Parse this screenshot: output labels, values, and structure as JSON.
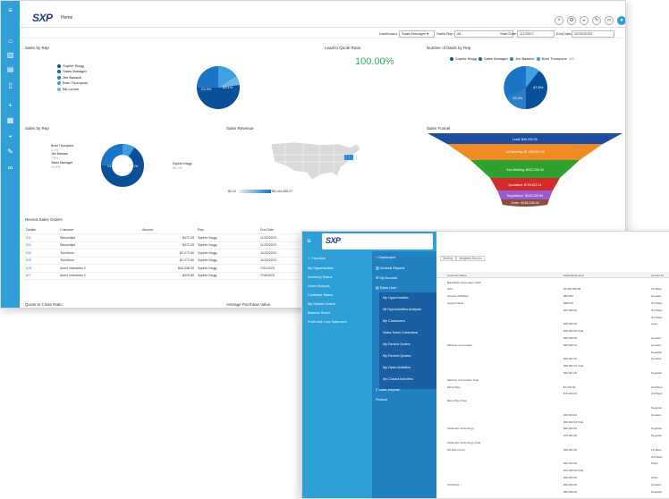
{
  "back_window": {
    "page_title": "Home",
    "logo": "SXP",
    "filters": {
      "dashboard_label": "Dashboard:",
      "dashboard_value": "Sales Manager",
      "sales_rep_label": "Sales Rep:",
      "sales_rep_value": "All",
      "start_date_label": "Start Date:",
      "start_date_value": "1/1/2007",
      "end_date_label": "End Date:",
      "end_date_value": "12/31/2023"
    },
    "sales_by_rep_top": {
      "title": "Sales by Rep",
      "legend": [
        "Sophie Klogg",
        "Sales Manager",
        "Jim Bassick",
        "Brad Thompson",
        "Bill Levine"
      ],
      "slice_labels": [
        "23.9%",
        "65.1%"
      ]
    },
    "lead_to_quote": {
      "title": "Lead to Quote Ratio",
      "value": "100.00%"
    },
    "deals_by_rep": {
      "title": "Number of Deals by Rep",
      "legend": [
        "Sophie Klogg",
        "Sales Manager",
        "Jim Bassick",
        "Brad Thompson"
      ],
      "pager": "1/2",
      "slice_labels": [
        "47.8%",
        "15.3%"
      ]
    },
    "sales_by_rep_donut": {
      "title": "Sales by Rep",
      "labels": [
        {
          "name": "Brad Thompson",
          "pct": "0.2%"
        },
        {
          "name": "Jim Bassick",
          "pct": "7.8%"
        },
        {
          "name": "Sales Manager",
          "pct": "23.9%"
        }
      ],
      "right_label": {
        "name": "Sophie Klogg",
        "pct": "65.1%"
      },
      "slice_labels": [
        "23.9%",
        "65.1%"
      ]
    },
    "sales_revenue": {
      "title": "Sales Revenue",
      "scale_min": "$2.12",
      "scale_max": "$5,144,455.27"
    },
    "sales_funnel": {
      "title": "Sales Funnel",
      "stages": [
        "Lead: $40,000.00",
        "1st Meeting: $1,200,810.00",
        "2nd Meeting: $822,306.00",
        "Quotation: $709,622.11",
        "Negotiation: $242,255.96",
        "Order: $165,335.00"
      ]
    },
    "recent_orders": {
      "title": "Recent Sales Orders",
      "columns": [
        "Details",
        "Customer",
        "Amount",
        "Rep",
        "Doc Date"
      ],
      "rows": [
        {
          "id": "632",
          "customer": "Microchips",
          "amount": "$472.25",
          "rep": "Sophie Klogg",
          "date": "11/22/2023"
        },
        {
          "id": "631",
          "customer": "Microchips",
          "amount": "$472.25",
          "rep": "Sophie Klogg",
          "date": "11/22/2023"
        },
        {
          "id": "630",
          "customer": "TechMore",
          "amount": "$2,272.60",
          "rep": "Sophie Klogg",
          "date": "11/22/2023"
        },
        {
          "id": "629",
          "customer": "TechMore",
          "amount": "$1,272.60",
          "rep": "Sophie Klogg",
          "date": "11/22/2023"
        },
        {
          "id": "628",
          "customer": "Acme Industries 2",
          "amount": "$44,348.30",
          "rep": "Sophie Klogg",
          "date": "7/31/2023"
        },
        {
          "id": "627",
          "customer": "Acme Industries 2",
          "amount": "$429.60",
          "rep": "Sophie Klogg",
          "date": "7/18/2023"
        }
      ]
    },
    "quote_close": "Quote to Close Ratio",
    "avg_purchase": "Average Purchase Value"
  },
  "front_window": {
    "logo": "SXP",
    "left_menu": [
      "Favorites",
      "My Opportunities",
      "Inventory Status",
      "Order Analysis",
      "Customer Status",
      "My Recent Orders",
      "Balance Sheet",
      "Profit and Loss Statement"
    ],
    "mid_menu": [
      "Dashboard",
      "General Reports",
      "My Account",
      "Sales User"
    ],
    "sales_user_items": [
      "My Opportunities",
      "All Opportunities Analysis",
      "My Customers",
      "Sales Team Customers",
      "My Recent Orders",
      "My Recent Quotes",
      "My Open Activities",
      "My Closed Activities"
    ],
    "mid_menu_bottom": [
      "Sales Reports",
      "Finance"
    ],
    "chips": [
      "Territory",
      "Weighted Amount"
    ],
    "grid_headers": [
      "Customer Name",
      "Potential Amount",
      "Current St"
    ],
    "grid_rows": [
      {
        "name": "Barcharter Corporation Total",
        "amt": "",
        "st": ""
      },
      {
        "name": "John",
        "amt": "$1,000,000.00",
        "st": "1st Meet"
      },
      {
        "name": "Johnson Matthew",
        "amt": "$50,000",
        "st": "Quotatio"
      },
      {
        "name": "Joseph Davis",
        "amt": "$950.00",
        "st": "2nd Meet"
      },
      {
        "name": "",
        "amt": "$10,000.00",
        "st": "2nd Meet"
      },
      {
        "name": "",
        "amt": "",
        "st": "2nd Meet"
      },
      {
        "name": "",
        "amt": "$20,000.00",
        "st": "Lead"
      },
      {
        "name": "",
        "amt": "$20,000.00 Total",
        "st": ""
      },
      {
        "name": "",
        "amt": "$30,000.00",
        "st": "Quotatio"
      },
      {
        "name": "Machine Corporation",
        "amt": "$30,000.01",
        "st": "Quotatio"
      },
      {
        "name": "",
        "amt": "",
        "st": "Negotiati"
      },
      {
        "name": "",
        "amt": "$20,000.00",
        "st": "Quotatio"
      },
      {
        "name": "",
        "amt": "$35,000.00 Total",
        "st": ""
      },
      {
        "name": "",
        "amt": "$30,001.00",
        "st": "Negotiati"
      },
      {
        "name": "Machine Corporation Total",
        "amt": "",
        "st": ""
      },
      {
        "name": "Microchips",
        "amt": "$7,000.00",
        "st": "2nd Meet"
      },
      {
        "name": "",
        "amt": "$70,400.00",
        "st": "2nd Meet"
      },
      {
        "name": "Microchips Total",
        "amt": "",
        "st": ""
      },
      {
        "name": "",
        "amt": "",
        "st": "Negotiati"
      },
      {
        "name": "",
        "amt": "$20,000.00",
        "st": "Quotatio"
      },
      {
        "name": "",
        "amt": "$20,000.00 Total",
        "st": ""
      },
      {
        "name": "Parameter Technology",
        "amt": "$30,000.00",
        "st": "Negotiati"
      },
      {
        "name": "",
        "amt": "$70,000.00",
        "st": "Negotiati"
      },
      {
        "name": "Parameter Technology Total",
        "amt": "",
        "st": ""
      },
      {
        "name": "SG Electronics",
        "amt": "$20,000.00",
        "st": "1st Meet"
      },
      {
        "name": "",
        "amt": "",
        "st": "2nd Meet"
      },
      {
        "name": "",
        "amt": "$10,000.00",
        "st": "Order"
      },
      {
        "name": "",
        "amt": "$70,000.00 Total",
        "st": ""
      },
      {
        "name": "",
        "amt": "$20,000.00",
        "st": "Order"
      },
      {
        "name": "TechMore",
        "amt": "$20,000.00",
        "st": "Quotatio"
      },
      {
        "name": "",
        "amt": "$30,000.00",
        "st": "Negotiati"
      }
    ]
  },
  "colors": {
    "accent": "#2f9fd8",
    "accent_dark": "#1a5fa3",
    "pie1": "#0a4f9a",
    "pie2": "#1b74c6",
    "pie3": "#3da0e0",
    "funnel": [
      "#1e4e9f",
      "#f08a24",
      "#2ea12e",
      "#d32a2a",
      "#9a5ad0",
      "#8b4f39"
    ]
  }
}
